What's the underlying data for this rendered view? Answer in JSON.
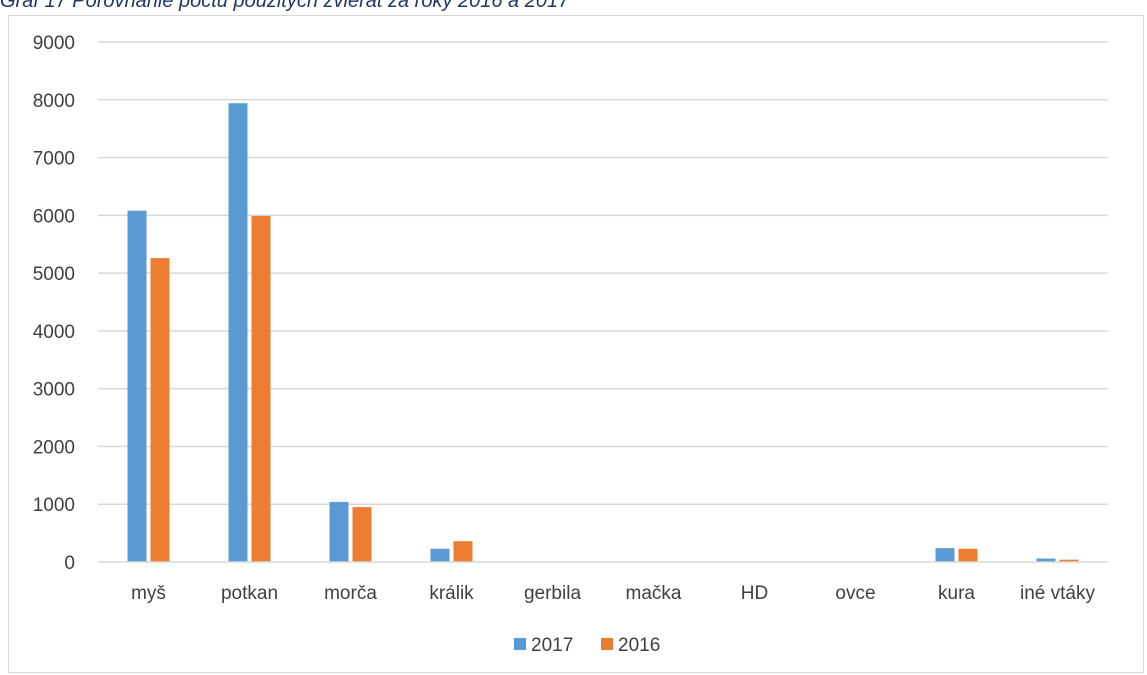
{
  "caption": "Graf 17 Porovnanie počtu použitých zvierat za roky 2016 a 2017",
  "chart_data": {
    "type": "bar",
    "title": "",
    "xlabel": "",
    "ylabel": "",
    "categories": [
      "myš",
      "potkan",
      "morča",
      "králik",
      "gerbila",
      "mačka",
      "HD",
      "ovce",
      "kura",
      "iné vtáky"
    ],
    "series": [
      {
        "name": "2017",
        "color": "#5b9bd5",
        "values": [
          6080,
          7940,
          1040,
          230,
          0,
          0,
          0,
          0,
          240,
          60
        ]
      },
      {
        "name": "2016",
        "color": "#ed7d31",
        "values": [
          5260,
          5990,
          950,
          360,
          0,
          0,
          0,
          0,
          230,
          40
        ]
      }
    ],
    "ylim": [
      0,
      9000
    ],
    "yticks": [
      "0",
      "1000",
      "2000",
      "3000",
      "4000",
      "5000",
      "6000",
      "7000",
      "8000",
      "9000"
    ],
    "grid": true,
    "gridline_color": "#d9d9d9",
    "legend_position": "bottom"
  }
}
